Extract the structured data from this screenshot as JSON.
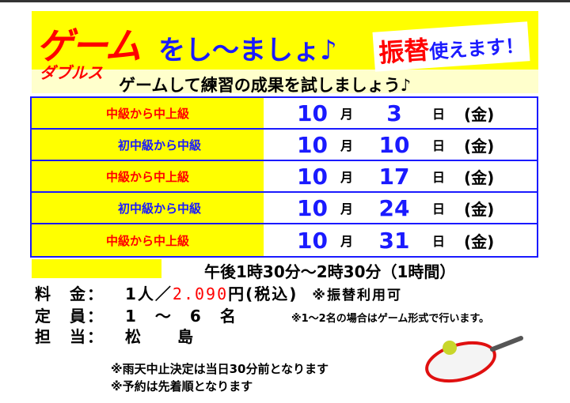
{
  "header": {
    "title_red": "ゲーム",
    "title_blue": "をし〜ましょ♪",
    "doubles": "ダブルス",
    "furikae_red": "振替",
    "furikae_blue": "使えます！",
    "subtitle": "ゲームして練習の成果を試しましょう♪"
  },
  "schedule": [
    {
      "level": "中級から中上級",
      "month": "10",
      "month_label": "月",
      "day": "3",
      "day_label": "日",
      "weekday": "(金)"
    },
    {
      "level": "初中級から中級",
      "month": "10",
      "month_label": "月",
      "day": "10",
      "day_label": "日",
      "weekday": "(金)"
    },
    {
      "level": "中級から中上級",
      "month": "10",
      "month_label": "月",
      "day": "17",
      "day_label": "日",
      "weekday": "(金)"
    },
    {
      "level": "初中級から中級",
      "month": "10",
      "month_label": "月",
      "day": "24",
      "day_label": "日",
      "weekday": "(金)"
    },
    {
      "level": "中級から中上級",
      "month": "10",
      "month_label": "月",
      "day": "31",
      "day_label": "日",
      "weekday": "(金)"
    }
  ],
  "time": "午後1時30分〜2時30分（1時間）",
  "fee": {
    "label": "料　金：",
    "prefix": "1人／",
    "price": "2.090",
    "suffix": "円(税込)",
    "note": "※振替利用可"
  },
  "capacity": {
    "label": "定　員：",
    "value": "1　〜　6　名",
    "note": "※1〜2名の場合はゲーム形式で行います。"
  },
  "staff": {
    "label": "担　当：",
    "value": "松　　島"
  },
  "notes": [
    "※雨天中止決定は当日30分前となります",
    "※予約は先着順となります"
  ],
  "colors": {
    "red": "#ff0000",
    "blue": "#1a1aff",
    "yellow": "#ffff00"
  }
}
